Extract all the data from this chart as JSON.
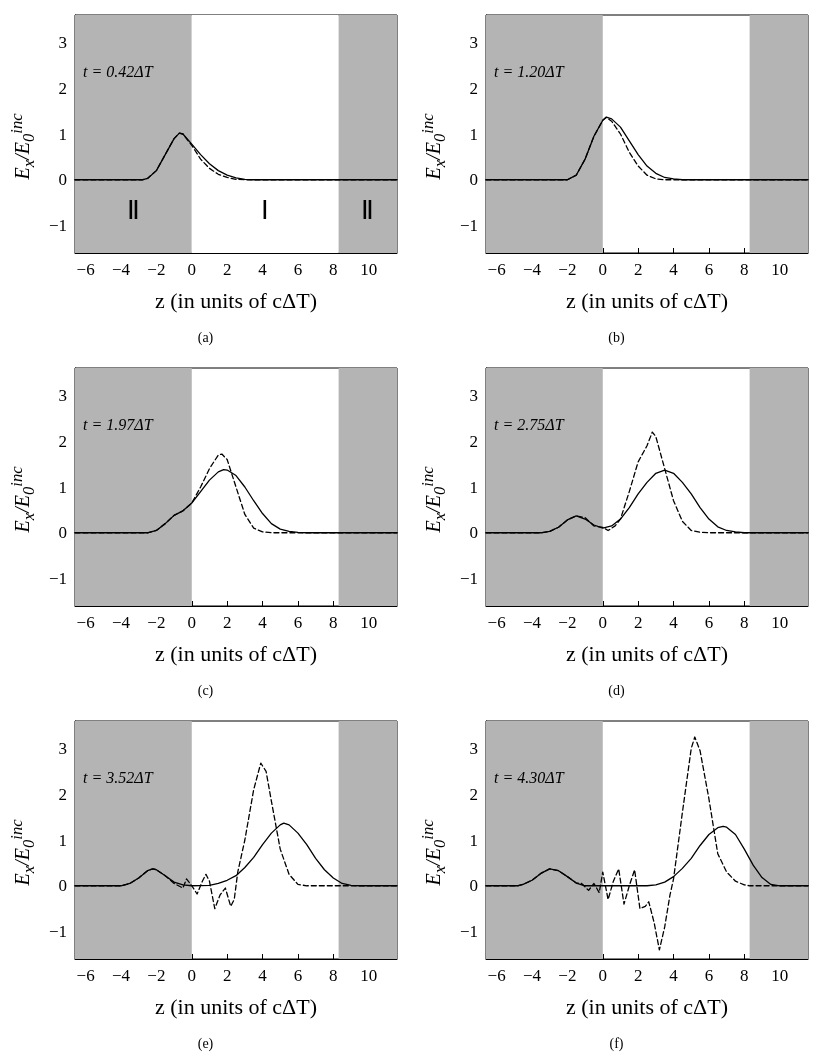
{
  "chart_data": [
    {
      "type": "line",
      "title": "t = 0.42ΔT",
      "xlabel": "z (in units of cΔT)",
      "ylabel": "E$_{x}$/E$_{0}$$^{inc}$",
      "annotations": [
        "(a)"
      ],
      "xlim": [
        -6.6,
        11.6
      ],
      "ylim": [
        -1.6,
        3.6
      ],
      "xticks": [
        -6,
        -4,
        -2,
        0,
        2,
        4,
        6,
        8,
        10
      ],
      "yticks": [
        -1,
        0,
        1,
        2,
        3
      ],
      "grid": false,
      "marker": "none",
      "bands": [
        {
          "axis": "x",
          "from": -6.6,
          "to": 0,
          "label": "Ⅱ",
          "color": "#b4b4b4"
        },
        {
          "axis": "x",
          "from": 0,
          "to": 8.3,
          "label": "Ⅰ",
          "color": "#ffffff"
        },
        {
          "axis": "x",
          "from": 8.3,
          "to": 11.6,
          "label": "Ⅱ",
          "color": "#b4b4b4"
        }
      ],
      "series": [
        {
          "color": "#000000",
          "line_style": "solid",
          "x": [
            -6.6,
            -3,
            -2.8,
            -2.5,
            -2,
            -1.5,
            -1,
            -0.7,
            -0.5,
            0,
            0.5,
            1,
            1.5,
            2,
            2.5,
            3,
            3.5,
            11.6
          ],
          "values": [
            0,
            0,
            0,
            0.03,
            0.2,
            0.55,
            0.9,
            1.02,
            1,
            0.78,
            0.55,
            0.35,
            0.2,
            0.1,
            0.04,
            0.01,
            0,
            0
          ]
        },
        {
          "color": "#000000",
          "line_style": "dashed",
          "x": [
            -6.6,
            -3,
            -2.8,
            -2.5,
            -2,
            -1.5,
            -1,
            -0.7,
            -0.5,
            0,
            0.5,
            1,
            1.5,
            2,
            2.5,
            3,
            11.6
          ],
          "values": [
            0,
            0,
            0,
            0.03,
            0.2,
            0.55,
            0.9,
            1.02,
            1,
            0.75,
            0.45,
            0.25,
            0.12,
            0.05,
            0.01,
            0,
            0
          ]
        }
      ]
    },
    {
      "type": "line",
      "title": "t = 1.20ΔT",
      "xlabel": "z (in units of cΔT)",
      "ylabel": "E$_{x}$/E$_{0}$$^{inc}$",
      "annotations": [
        "(b)"
      ],
      "xlim": [
        -6.6,
        11.6
      ],
      "ylim": [
        -1.6,
        3.6
      ],
      "xticks": [
        -6,
        -4,
        -2,
        0,
        2,
        4,
        6,
        8,
        10
      ],
      "yticks": [
        -1,
        0,
        1,
        2,
        3
      ],
      "grid": false,
      "marker": "none",
      "bands": [
        {
          "axis": "x",
          "from": -6.6,
          "to": 0,
          "color": "#b4b4b4"
        },
        {
          "axis": "x",
          "from": 8.3,
          "to": 11.6,
          "color": "#b4b4b4"
        }
      ],
      "series": [
        {
          "color": "#000000",
          "line_style": "solid",
          "x": [
            -6.6,
            -2,
            -1.5,
            -1,
            -0.5,
            0,
            0.2,
            0.5,
            1,
            1.5,
            2,
            2.5,
            3,
            3.5,
            4,
            4.5,
            11.6
          ],
          "values": [
            0,
            0,
            0.1,
            0.45,
            0.95,
            1.3,
            1.37,
            1.33,
            1.15,
            0.85,
            0.55,
            0.3,
            0.14,
            0.05,
            0.02,
            0,
            0
          ]
        },
        {
          "color": "#000000",
          "line_style": "dashed",
          "x": [
            -6.6,
            -2,
            -1.5,
            -1,
            -0.5,
            0,
            0.2,
            0.5,
            1,
            1.5,
            2,
            2.5,
            3,
            3.5,
            11.6
          ],
          "values": [
            0,
            0,
            0.1,
            0.45,
            0.95,
            1.3,
            1.36,
            1.28,
            1,
            0.6,
            0.3,
            0.1,
            0.02,
            0,
            0
          ]
        }
      ]
    },
    {
      "type": "line",
      "title": "t = 1.97ΔT",
      "xlabel": "z (in units of cΔT)",
      "ylabel": "E$_{x}$/E$_{0}$$^{inc}$",
      "annotations": [
        "(c)"
      ],
      "xlim": [
        -6.6,
        11.6
      ],
      "ylim": [
        -1.6,
        3.6
      ],
      "xticks": [
        -6,
        -4,
        -2,
        0,
        2,
        4,
        6,
        8,
        10
      ],
      "yticks": [
        -1,
        0,
        1,
        2,
        3
      ],
      "grid": false,
      "marker": "none",
      "bands": [
        {
          "axis": "x",
          "from": -6.6,
          "to": 0,
          "color": "#b4b4b4"
        },
        {
          "axis": "x",
          "from": 8.3,
          "to": 11.6,
          "color": "#b4b4b4"
        }
      ],
      "series": [
        {
          "color": "#000000",
          "line_style": "solid",
          "x": [
            -6.6,
            -2.5,
            -2,
            -1.5,
            -1,
            -0.5,
            0,
            0.5,
            1,
            1.5,
            1.8,
            2,
            2.5,
            3,
            3.5,
            4,
            4.5,
            5,
            5.5,
            6,
            6.5,
            11.6
          ],
          "values": [
            0,
            0,
            0.05,
            0.2,
            0.38,
            0.48,
            0.65,
            0.9,
            1.15,
            1.33,
            1.38,
            1.37,
            1.25,
            1,
            0.7,
            0.42,
            0.2,
            0.08,
            0.03,
            0.01,
            0,
            0
          ]
        },
        {
          "color": "#000000",
          "line_style": "dashed",
          "x": [
            -6.6,
            -2.5,
            -2,
            -1.5,
            -1,
            -0.5,
            0,
            0.5,
            1,
            1.5,
            1.7,
            2,
            2.5,
            3,
            3.5,
            4,
            4.5,
            11.6
          ],
          "values": [
            0,
            0,
            0.05,
            0.2,
            0.38,
            0.48,
            0.65,
            1,
            1.4,
            1.7,
            1.72,
            1.6,
            1,
            0.4,
            0.1,
            0.02,
            0,
            0
          ]
        }
      ]
    },
    {
      "type": "line",
      "title": "t = 2.75ΔT",
      "xlabel": "z (in units of cΔT)",
      "ylabel": "E$_{x}$/E$_{0}$$^{inc}$",
      "annotations": [
        "(d)"
      ],
      "xlim": [
        -6.6,
        11.6
      ],
      "ylim": [
        -1.6,
        3.6
      ],
      "xticks": [
        -6,
        -4,
        -2,
        0,
        2,
        4,
        6,
        8,
        10
      ],
      "yticks": [
        -1,
        0,
        1,
        2,
        3
      ],
      "grid": false,
      "marker": "none",
      "bands": [
        {
          "axis": "x",
          "from": -6.6,
          "to": 0,
          "color": "#b4b4b4"
        },
        {
          "axis": "x",
          "from": 8.3,
          "to": 11.6,
          "color": "#b4b4b4"
        }
      ],
      "series": [
        {
          "color": "#000000",
          "line_style": "solid",
          "x": [
            -6.6,
            -3.5,
            -3,
            -2.5,
            -2,
            -1.5,
            -1,
            -0.5,
            0,
            0.5,
            1,
            1.5,
            2,
            2.5,
            3,
            3.5,
            4,
            4.5,
            5,
            5.5,
            6,
            6.5,
            7,
            7.5,
            8,
            11.6
          ],
          "values": [
            0,
            0,
            0.03,
            0.12,
            0.28,
            0.37,
            0.3,
            0.17,
            0.1,
            0.15,
            0.3,
            0.55,
            0.85,
            1.1,
            1.3,
            1.37,
            1.3,
            1.1,
            0.85,
            0.55,
            0.3,
            0.13,
            0.05,
            0.02,
            0,
            0
          ]
        },
        {
          "color": "#000000",
          "line_style": "dashed",
          "x": [
            -6.6,
            -3.5,
            -3,
            -2.5,
            -2,
            -1.5,
            -1,
            -0.5,
            0,
            0.3,
            0.7,
            1,
            1.5,
            2,
            2.5,
            2.8,
            3,
            3.5,
            4,
            4.5,
            5,
            5.5,
            6,
            11.6
          ],
          "values": [
            0,
            0,
            0.03,
            0.12,
            0.28,
            0.37,
            0.33,
            0.15,
            0.12,
            0.05,
            0.15,
            0.3,
            0.9,
            1.55,
            1.9,
            2.2,
            2.1,
            1.4,
            0.7,
            0.25,
            0.05,
            0.01,
            0,
            0
          ]
        }
      ]
    },
    {
      "type": "line",
      "title": "t = 3.52ΔT",
      "xlabel": "z (in units of cΔT)",
      "ylabel": "E$_{x}$/E$_{0}$$^{inc}$",
      "annotations": [
        "(e)"
      ],
      "xlim": [
        -6.6,
        11.6
      ],
      "ylim": [
        -1.6,
        3.6
      ],
      "xticks": [
        -6,
        -4,
        -2,
        0,
        2,
        4,
        6,
        8,
        10
      ],
      "yticks": [
        -1,
        0,
        1,
        2,
        3
      ],
      "grid": false,
      "marker": "none",
      "bands": [
        {
          "axis": "x",
          "from": -6.6,
          "to": 0,
          "color": "#b4b4b4"
        },
        {
          "axis": "x",
          "from": 8.3,
          "to": 11.6,
          "color": "#b4b4b4"
        }
      ],
      "series": [
        {
          "color": "#000000",
          "line_style": "solid",
          "x": [
            -6.6,
            -4,
            -3.5,
            -3,
            -2.5,
            -2.2,
            -2,
            -1.5,
            -1,
            -0.5,
            0,
            1,
            1.5,
            2,
            2.5,
            3,
            3.5,
            4,
            4.5,
            5,
            5.2,
            5.5,
            6,
            6.5,
            7,
            7.5,
            8,
            8.5,
            9,
            9.5,
            11.6
          ],
          "values": [
            0,
            0,
            0.05,
            0.17,
            0.33,
            0.37,
            0.35,
            0.22,
            0.08,
            0.02,
            0,
            0.01,
            0.05,
            0.12,
            0.22,
            0.4,
            0.62,
            0.9,
            1.15,
            1.33,
            1.37,
            1.33,
            1.15,
            0.9,
            0.6,
            0.35,
            0.17,
            0.05,
            0.01,
            0,
            0
          ]
        },
        {
          "color": "#000000",
          "line_style": "dashed",
          "x": [
            -6.6,
            -4,
            -3.5,
            -3,
            -2.5,
            -2.2,
            -2,
            -1.5,
            -1,
            -0.5,
            -0.3,
            0,
            0.3,
            0.6,
            0.8,
            1,
            1.3,
            1.6,
            1.9,
            2.2,
            2.4,
            2.6,
            3,
            3.5,
            3.9,
            4.2,
            4.5,
            5,
            5.5,
            6,
            6.5,
            11.6
          ],
          "values": [
            0,
            0,
            0.05,
            0.17,
            0.33,
            0.37,
            0.35,
            0.22,
            0.05,
            -0.05,
            0.15,
            0,
            -0.18,
            0.1,
            0.25,
            0.1,
            -0.5,
            -0.2,
            -0.05,
            -0.45,
            -0.3,
            0.3,
            1,
            2.1,
            2.68,
            2.5,
            1.85,
            0.8,
            0.25,
            0.03,
            0,
            0
          ]
        }
      ]
    },
    {
      "type": "line",
      "title": "t = 4.30ΔT",
      "xlabel": "z (in units of cΔT)",
      "ylabel": "E$_{x}$/E$_{0}$$^{inc}$",
      "annotations": [
        "(f)"
      ],
      "xlim": [
        -6.6,
        11.6
      ],
      "ylim": [
        -1.6,
        3.6
      ],
      "xticks": [
        -6,
        -4,
        -2,
        0,
        2,
        4,
        6,
        8,
        10
      ],
      "yticks": [
        -1,
        0,
        1,
        2,
        3
      ],
      "grid": false,
      "marker": "none",
      "bands": [
        {
          "axis": "x",
          "from": -6.6,
          "to": 0,
          "color": "#b4b4b4"
        },
        {
          "axis": "x",
          "from": 8.3,
          "to": 11.6,
          "color": "#b4b4b4"
        }
      ],
      "series": [
        {
          "color": "#000000",
          "line_style": "solid",
          "x": [
            -6.6,
            -4.8,
            -4.5,
            -4,
            -3.5,
            -3,
            -2.5,
            -2,
            -1.5,
            -1,
            2.5,
            3,
            3.5,
            4,
            4.5,
            5,
            5.5,
            6,
            6.5,
            6.8,
            7,
            7.5,
            8,
            8.5,
            9,
            9.5,
            10,
            11.6
          ],
          "values": [
            0,
            0,
            0.03,
            0.12,
            0.27,
            0.37,
            0.33,
            0.2,
            0.06,
            0,
            0,
            0.02,
            0.08,
            0.2,
            0.38,
            0.6,
            0.88,
            1.12,
            1.27,
            1.3,
            1.28,
            1.12,
            0.8,
            0.45,
            0.18,
            0.03,
            0,
            0
          ]
        },
        {
          "color": "#000000",
          "line_style": "dashed",
          "x": [
            -6.6,
            -4.8,
            -4.5,
            -4,
            -3.5,
            -3,
            -2.5,
            -2,
            -1.5,
            -1.2,
            -0.8,
            -0.5,
            -0.2,
            0,
            0.3,
            0.6,
            0.9,
            1.2,
            1.5,
            1.8,
            2.1,
            2.4,
            2.6,
            2.9,
            3.2,
            3.5,
            3.8,
            4,
            4.5,
            5,
            5.2,
            5.5,
            6,
            6.5,
            7,
            7.5,
            8,
            8.3,
            11.6
          ],
          "values": [
            0,
            0,
            0.03,
            0.12,
            0.27,
            0.37,
            0.33,
            0.2,
            0.06,
            0.05,
            -0.1,
            0.05,
            -0.15,
            0.3,
            -0.3,
            0.1,
            0.37,
            -0.4,
            0,
            0.35,
            -0.5,
            -0.45,
            -0.35,
            -0.8,
            -1.4,
            -0.9,
            -0.2,
            0.15,
            1.6,
            3,
            3.25,
            2.95,
            1.9,
            0.7,
            0.3,
            0.1,
            0.02,
            0,
            0
          ]
        }
      ]
    }
  ]
}
